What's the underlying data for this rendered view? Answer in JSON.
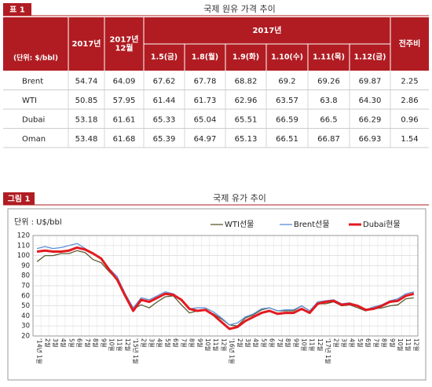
{
  "table_label": "표 1",
  "table_title": "국제 원유 가격 추이",
  "table": {
    "corner": "(단위: $/bbl)",
    "col_year": "2017년",
    "col_month": "2017년\n12월",
    "group": "2017년",
    "dates": [
      "1.5(금)",
      "1.8(월)",
      "1.9(화)",
      "1.10(수)",
      "1.11(목)",
      "1.12(금)"
    ],
    "col_change": "전주비",
    "rows": [
      [
        "Brent",
        "54.74",
        "64.09",
        "67.62",
        "67.78",
        "68.82",
        "69.2",
        "69.26",
        "69.87",
        "2.25"
      ],
      [
        "WTI",
        "50.85",
        "57.95",
        "61.44",
        "61.73",
        "62.96",
        "63.57",
        "63.8",
        "64.30",
        "2.86"
      ],
      [
        "Dubai",
        "53.18",
        "61.61",
        "65.33",
        "65.04",
        "65.51",
        "66.59",
        "66.5",
        "66.29",
        "0.96"
      ],
      [
        "Oman",
        "53.48",
        "61.68",
        "65.39",
        "64.97",
        "65.13",
        "66.51",
        "66.87",
        "66.93",
        "1.54"
      ]
    ]
  },
  "figure_label": "그림 1",
  "chart_data": {
    "type": "line",
    "title": "국제 유가 추이",
    "unit": "단위 : U$/bbl",
    "categories": [
      "'14년 1월",
      "2월",
      "3월",
      "4월",
      "5월",
      "6월",
      "7월",
      "8월",
      "9월",
      "10월",
      "11월",
      "12월",
      "'15년 1월",
      "2월",
      "3월",
      "4월",
      "5월",
      "6월",
      "7월",
      "8월",
      "9월",
      "10월",
      "11월",
      "12월",
      "'16년 1월",
      "2월",
      "3월",
      "4월",
      "5월",
      "6월",
      "7월",
      "8월",
      "9월",
      "10월",
      "11월",
      "12월",
      "'17년 1월",
      "2월",
      "3월",
      "4월",
      "5월",
      "6월",
      "7월",
      "8월",
      "9월",
      "10월",
      "11월",
      "12월"
    ],
    "series": [
      {
        "name": "WTI선물",
        "color": "#5c5a2e",
        "width": 1.3,
        "values": [
          94,
          100,
          100,
          102,
          102,
          105,
          103,
          96,
          93,
          84,
          76,
          59,
          47,
          51,
          48,
          54,
          59,
          60,
          51,
          43,
          45,
          46,
          42,
          37,
          31,
          30,
          38,
          41,
          46,
          48,
          45,
          45,
          45,
          50,
          45,
          52,
          52,
          54,
          50,
          51,
          48,
          45,
          47,
          48,
          50,
          51,
          57,
          58
        ]
      },
      {
        "name": "Brent선물",
        "color": "#5b8fd9",
        "width": 1.3,
        "values": [
          107,
          109,
          107,
          108,
          110,
          112,
          107,
          102,
          97,
          87,
          79,
          62,
          48,
          58,
          56,
          60,
          64,
          62,
          56,
          47,
          48,
          48,
          44,
          38,
          31,
          33,
          39,
          42,
          47,
          48,
          45,
          46,
          46,
          50,
          45,
          54,
          55,
          56,
          52,
          53,
          50,
          46,
          49,
          51,
          55,
          57,
          62,
          64
        ]
      },
      {
        "name": "Dubai현물",
        "color": "#e3191f",
        "width": 3,
        "values": [
          104,
          105,
          104,
          104,
          105,
          108,
          106,
          102,
          97,
          86,
          76,
          60,
          45,
          56,
          54,
          58,
          62,
          61,
          56,
          47,
          45,
          46,
          41,
          34,
          27,
          29,
          35,
          39,
          43,
          45,
          42,
          43,
          43,
          47,
          43,
          52,
          54,
          55,
          51,
          52,
          50,
          46,
          47,
          50,
          54,
          55,
          60,
          62
        ]
      }
    ],
    "ylim": [
      20,
      120
    ],
    "yticks": [
      20,
      30,
      40,
      50,
      60,
      70,
      80,
      90,
      100,
      110,
      120
    ],
    "grid": true,
    "legend": "top-right"
  }
}
